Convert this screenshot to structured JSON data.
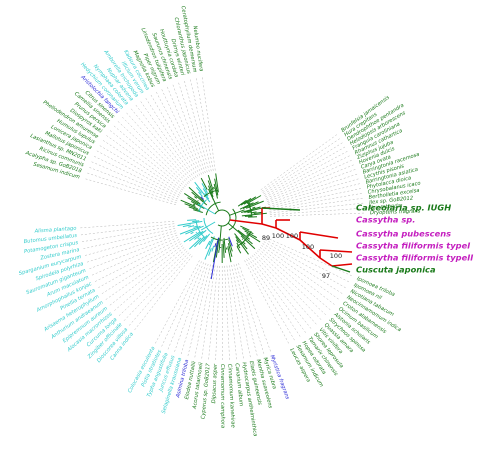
{
  "colors": {
    "green": "#1a7a1a",
    "cyan": "#33cccc",
    "blue": "#2b2bd6",
    "magenta": "#c41fbf",
    "red": "#e00000",
    "guide": "#b5b5b5"
  },
  "highlight_clade": {
    "taxa": [
      {
        "label": "Calceolaria sp. IUGH",
        "color": "green"
      },
      {
        "label": "Cassytha sp.",
        "color": "magenta"
      },
      {
        "label": "Cassytha pubescens",
        "color": "magenta"
      },
      {
        "label": "Cassytha filiformis typeI",
        "color": "magenta"
      },
      {
        "label": "Cassytha filiformis typeII",
        "color": "magenta"
      },
      {
        "label": "Cuscuta japonica",
        "color": "green"
      }
    ],
    "bootstrap": [
      "89",
      "100",
      "100",
      "100",
      "100",
      "97"
    ]
  },
  "tips_right_upper": [
    {
      "label": "Brunfelsia jamaicensis",
      "color": "green"
    },
    {
      "label": "Hura crepitans",
      "color": "green"
    },
    {
      "label": "Dendrophthoe pentandra",
      "color": "green"
    },
    {
      "label": "Helodiopsis arborescens",
      "color": "green"
    },
    {
      "label": "Frangula caroliniana",
      "color": "green"
    },
    {
      "label": "Rhamnus cathartica",
      "color": "green"
    },
    {
      "label": "Ziziphus jujuba",
      "color": "green"
    },
    {
      "label": "Hovenia dulcis",
      "color": "green"
    },
    {
      "label": "Carya ovata",
      "color": "green"
    },
    {
      "label": "Barringtonia racemosa",
      "color": "green"
    },
    {
      "label": "Lecythis pisonis",
      "color": "green"
    },
    {
      "label": "Barringtonia asiatica",
      "color": "green"
    },
    {
      "label": "Phytolacca dioica",
      "color": "green"
    },
    {
      "label": "Chrysobalanus icaco",
      "color": "green"
    },
    {
      "label": "Bertholletia excelsa",
      "color": "green"
    },
    {
      "label": "Ilex sp. GoB2012",
      "color": "green"
    },
    {
      "label": "Ilex rotunda",
      "color": "green"
    },
    {
      "label": "Dryopteris fragrans",
      "color": "green"
    }
  ],
  "tips_right_lower": [
    {
      "label": "Ipomoea triloba",
      "color": "green"
    },
    {
      "label": "Ipomoea nil",
      "color": "green"
    },
    {
      "label": "Nicotiana tabacum",
      "color": "green"
    },
    {
      "label": "Neocinnamomum indica",
      "color": "green"
    },
    {
      "label": "Croton alabamensis",
      "color": "green"
    },
    {
      "label": "Ocimum basilicum",
      "color": "green"
    },
    {
      "label": "Alstonia scholaris",
      "color": "green"
    },
    {
      "label": "Strychnos spinosa",
      "color": "green"
    },
    {
      "label": "Quassia amara",
      "color": "green"
    },
    {
      "label": "Vitis vinifera",
      "color": "green"
    },
    {
      "label": "Shorea leprosula",
      "color": "green"
    },
    {
      "label": "Tamarix chinensis",
      "color": "green"
    },
    {
      "label": "Hopea odorata",
      "color": "green"
    },
    {
      "label": "Sesamum indicum",
      "color": "green"
    },
    {
      "label": "Leucas aspera",
      "color": "green"
    }
  ],
  "tips_bottom": [
    {
      "label": "Myristica fragrans",
      "color": "blue"
    },
    {
      "label": "Myrica rubra",
      "color": "green"
    },
    {
      "label": "Mentha suaveolens",
      "color": "green"
    },
    {
      "label": "Elaeis guineensis",
      "color": "green"
    },
    {
      "label": "Hydnocarpus anthelminthica",
      "color": "green"
    },
    {
      "label": "Canarium album",
      "color": "green"
    },
    {
      "label": "Cinnamomum kanehirae",
      "color": "green"
    },
    {
      "label": "Cinnamomum camphora",
      "color": "green"
    },
    {
      "label": "Dipsacus asper",
      "color": "green"
    },
    {
      "label": "Cyperus sp. GoB2017",
      "color": "green"
    },
    {
      "label": "Acorus tatarinowii",
      "color": "green"
    },
    {
      "label": "Elodea nuttallii",
      "color": "green"
    },
    {
      "label": "Asimina triloba",
      "color": "blue"
    },
    {
      "label": "Selaginella kraussiana",
      "color": "cyan"
    },
    {
      "label": "Juncus effusus",
      "color": "cyan"
    },
    {
      "label": "Typha angustifolia",
      "color": "cyan"
    },
    {
      "label": "Pistia stratiotes",
      "color": "cyan"
    },
    {
      "label": "Colocasia esculenta",
      "color": "cyan"
    }
  ],
  "tips_left": [
    {
      "label": "Canna indica",
      "color": "cyan"
    },
    {
      "label": "Dioscorea villosa",
      "color": "cyan"
    },
    {
      "label": "Zingiber officinale",
      "color": "cyan"
    },
    {
      "label": "Curcuma longa",
      "color": "cyan"
    },
    {
      "label": "Alocasia macrorrhizos",
      "color": "cyan"
    },
    {
      "label": "Epipremnum aureum",
      "color": "cyan"
    },
    {
      "label": "Anthurium andraeanum",
      "color": "cyan"
    },
    {
      "label": "Arisaema heterophyllum",
      "color": "cyan"
    },
    {
      "label": "Pinellia ternata",
      "color": "cyan"
    },
    {
      "label": "Amorphophallus konjac",
      "color": "cyan"
    },
    {
      "label": "Arum maculatum",
      "color": "cyan"
    },
    {
      "label": "Sauromatum giganteum",
      "color": "cyan"
    },
    {
      "label": "Spirodela polyrhiza",
      "color": "cyan"
    },
    {
      "label": "Sparganium eurycarpum",
      "color": "cyan"
    },
    {
      "label": "Zostera marina",
      "color": "cyan"
    },
    {
      "label": "Potamogeton crispus",
      "color": "cyan"
    },
    {
      "label": "Butomus umbellatus",
      "color": "cyan"
    },
    {
      "label": "Alisma plantago",
      "color": "cyan"
    }
  ],
  "tips_top": [
    {
      "label": "Sesamum indicum",
      "color": "green"
    },
    {
      "label": "Acalypha sp. GoB2018",
      "color": "green"
    },
    {
      "label": "Ricinus communis",
      "color": "green"
    },
    {
      "label": "Lasianthus sp. MN2011",
      "color": "green"
    },
    {
      "label": "Mallotus japonicus",
      "color": "green"
    },
    {
      "label": "Lonicera japonica",
      "color": "green"
    },
    {
      "label": "Humulus lupulus",
      "color": "green"
    },
    {
      "label": "Phellodendron amurense",
      "color": "green"
    },
    {
      "label": "Diospyros kaki",
      "color": "green"
    },
    {
      "label": "Prunus persica",
      "color": "green"
    },
    {
      "label": "Camellia sinensis",
      "color": "green"
    },
    {
      "label": "Citrus sinensis",
      "color": "green"
    },
    {
      "label": "Aristolochia fangchi",
      "color": "blue"
    },
    {
      "label": "Hedychium coronarium",
      "color": "cyan"
    },
    {
      "label": "Nymphaea colorata",
      "color": "cyan"
    },
    {
      "label": "Nuphar advena",
      "color": "cyan"
    },
    {
      "label": "Amborella trichopoda",
      "color": "cyan"
    },
    {
      "label": "Illicium verum",
      "color": "cyan"
    },
    {
      "label": "Kadsura coccinea",
      "color": "cyan"
    },
    {
      "label": "Magnolia kobus",
      "color": "green"
    },
    {
      "label": "Piper nigrum",
      "color": "green"
    },
    {
      "label": "Liriodendron tulipifera",
      "color": "green"
    },
    {
      "label": "Saururus chinensis",
      "color": "green"
    },
    {
      "label": "Houttuynia cordata",
      "color": "green"
    },
    {
      "label": "Drimys winteri",
      "color": "green"
    },
    {
      "label": "Chloranthus japonicus",
      "color": "green"
    },
    {
      "label": "Ceratophyllum demersum",
      "color": "green"
    },
    {
      "label": "Nelumbo nucifera",
      "color": "green"
    }
  ]
}
